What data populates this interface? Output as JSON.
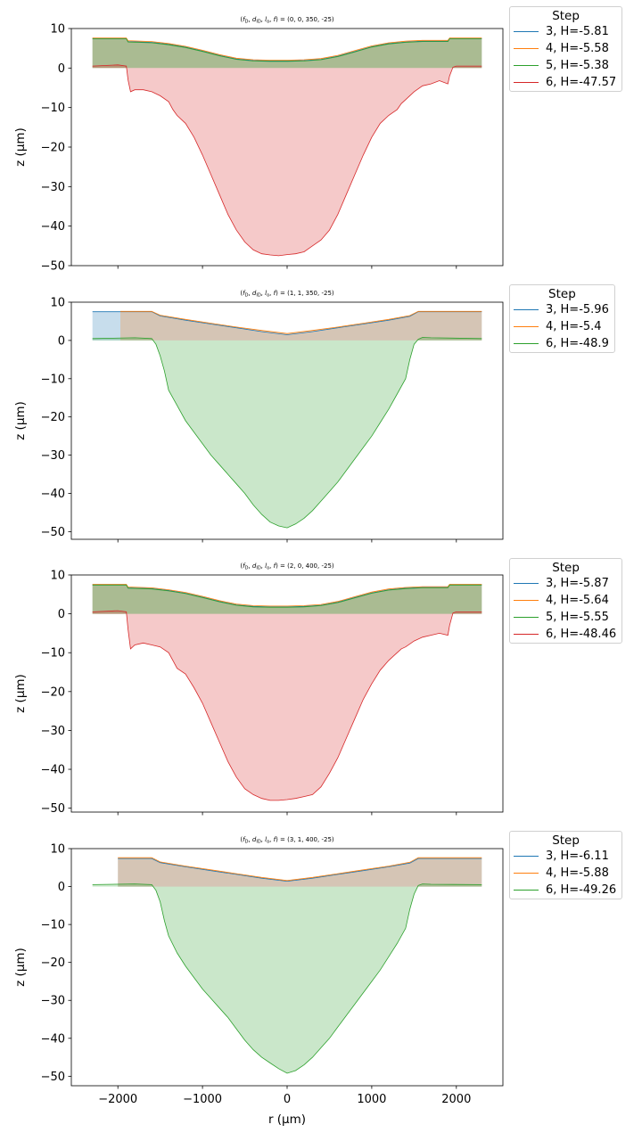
{
  "figure": {
    "width": 720,
    "height": 1280
  },
  "chart_data": [
    {
      "type": "area",
      "title": "(f_D, d_ID, l_o, f) = (0, 0, 350, -25)",
      "title_prefix": "(",
      "title_vars": [
        "f",
        "D",
        "d",
        "ID",
        "l",
        "o",
        "f"
      ],
      "title_suffix": ") = (0, 0, 350, -25)",
      "xlabel": "",
      "ylabel": "z (μm)",
      "xlim": [
        -2550,
        2550
      ],
      "ylim": [
        -50,
        10
      ],
      "xticks": [
        -2000,
        -1000,
        0,
        1000,
        2000
      ],
      "yticks": [
        10,
        0,
        -10,
        -20,
        -30,
        -40,
        -50
      ],
      "show_xticklabels": false,
      "grid": false,
      "legend": {
        "title": "Step",
        "placement": "outside-right",
        "entries": [
          "3, H=-5.81",
          "4, H=-5.58",
          "5, H=-5.38",
          "6, H=-47.57"
        ]
      },
      "series": [
        {
          "name": "3, H=-5.81",
          "color": "#1f77b4",
          "fill": true,
          "x": [
            -2300,
            -1900,
            -1880,
            -1600,
            -1400,
            -1200,
            -1000,
            -800,
            -600,
            -400,
            -200,
            0,
            200,
            400,
            600,
            800,
            1000,
            1200,
            1400,
            1600,
            1900,
            1920,
            2300
          ],
          "y": [
            7.5,
            7.5,
            6.7,
            6.5,
            6,
            5.3,
            4.3,
            3.2,
            2.3,
            1.9,
            1.8,
            1.8,
            1.9,
            2.2,
            3,
            4.2,
            5.4,
            6.2,
            6.6,
            6.8,
            6.8,
            7.5,
            7.5
          ]
        },
        {
          "name": "4, H=-5.58",
          "color": "#ff7f0e",
          "fill": true,
          "x": [
            -2300,
            -1900,
            -1880,
            -1600,
            -1400,
            -1200,
            -1000,
            -800,
            -600,
            -400,
            -200,
            0,
            200,
            400,
            600,
            800,
            1000,
            1200,
            1400,
            1600,
            1900,
            1920,
            2300
          ],
          "y": [
            7.6,
            7.6,
            6.9,
            6.7,
            6.2,
            5.5,
            4.5,
            3.4,
            2.5,
            2.1,
            2,
            2,
            2.1,
            2.4,
            3.2,
            4.4,
            5.6,
            6.4,
            6.8,
            7,
            7,
            7.6,
            7.6
          ]
        },
        {
          "name": "5, H=-5.38",
          "color": "#2ca02c",
          "fill": true,
          "x": [
            -2300,
            -1900,
            -1880,
            -1600,
            -1400,
            -1200,
            -1000,
            -800,
            -600,
            -400,
            -200,
            0,
            200,
            400,
            600,
            800,
            1000,
            1200,
            1400,
            1600,
            1900,
            1920,
            2300
          ],
          "y": [
            7.4,
            7.4,
            6.6,
            6.4,
            5.9,
            5.2,
            4.2,
            3.1,
            2.2,
            1.8,
            1.7,
            1.7,
            1.8,
            2.1,
            2.9,
            4.1,
            5.3,
            6.1,
            6.5,
            6.7,
            6.7,
            7.4,
            7.4
          ]
        },
        {
          "name": "6, H=-47.57",
          "color": "#d62728",
          "fill": true,
          "x": [
            -2300,
            -2000,
            -1900,
            -1880,
            -1850,
            -1800,
            -1700,
            -1600,
            -1500,
            -1400,
            -1350,
            -1300,
            -1200,
            -1100,
            -1000,
            -900,
            -800,
            -700,
            -600,
            -500,
            -400,
            -300,
            -200,
            -100,
            0,
            100,
            200,
            300,
            400,
            500,
            600,
            700,
            800,
            900,
            1000,
            1100,
            1200,
            1300,
            1350,
            1400,
            1500,
            1600,
            1700,
            1800,
            1900,
            1920,
            1960,
            2000,
            2300
          ],
          "y": [
            0.5,
            0.8,
            0.5,
            -3,
            -6,
            -5.5,
            -5.5,
            -6,
            -7,
            -8.5,
            -10.5,
            -12,
            -14,
            -17.5,
            -22,
            -27,
            -32,
            -37,
            -41,
            -44,
            -46,
            -47,
            -47.3,
            -47.5,
            -47.2,
            -47,
            -46.5,
            -45,
            -43.5,
            -41,
            -37,
            -32,
            -27,
            -22,
            -17.5,
            -14,
            -12,
            -10.5,
            -9,
            -8,
            -6,
            -4.5,
            -4,
            -3.2,
            -4,
            -2,
            0.2,
            0.5,
            0.5
          ]
        }
      ]
    },
    {
      "type": "area",
      "title": "(f_D, d_ID, l_o, f) = (1, 1, 350, -25)",
      "title_prefix": "(",
      "title_vars": [
        "f",
        "D",
        "d",
        "ID",
        "l",
        "o",
        "f"
      ],
      "title_suffix": ") = (1, 1, 350, -25)",
      "xlabel": "",
      "ylabel": "z (μm)",
      "xlim": [
        -2550,
        2550
      ],
      "ylim": [
        -52,
        10
      ],
      "xticks": [
        -2000,
        -1000,
        0,
        1000,
        2000
      ],
      "yticks": [
        10,
        0,
        -10,
        -20,
        -30,
        -40,
        -50
      ],
      "show_xticklabels": false,
      "grid": false,
      "legend": {
        "title": "Step",
        "placement": "outside-right",
        "entries": [
          "3, H=-5.96",
          "4, H=-5.4",
          "6, H=-48.9"
        ]
      },
      "series": [
        {
          "name": "3, H=-5.96",
          "color": "#1f77b4",
          "fill": true,
          "x": [
            -2300,
            -1600,
            -1500,
            -1200,
            -900,
            -600,
            -300,
            0,
            300,
            600,
            900,
            1200,
            1450,
            1550,
            2300
          ],
          "y": [
            7.5,
            7.5,
            6.4,
            5.3,
            4.3,
            3.3,
            2.3,
            1.5,
            2.3,
            3.3,
            4.3,
            5.3,
            6.3,
            7.5,
            7.5
          ]
        },
        {
          "name": "4, H=-5.4",
          "color": "#ff7f0e",
          "fill": true,
          "x": [
            -1970,
            -1600,
            -1500,
            -1200,
            -900,
            -600,
            -300,
            0,
            300,
            600,
            900,
            1200,
            1450,
            1550,
            2300
          ],
          "y": [
            7.6,
            7.6,
            6.6,
            5.5,
            4.5,
            3.5,
            2.6,
            1.8,
            2.6,
            3.5,
            4.5,
            5.5,
            6.5,
            7.6,
            7.6
          ]
        },
        {
          "name": "6, H=-48.9",
          "color": "#2ca02c",
          "fill": true,
          "x": [
            -2300,
            -1800,
            -1600,
            -1550,
            -1500,
            -1450,
            -1400,
            -1300,
            -1200,
            -1100,
            -1000,
            -900,
            -800,
            -700,
            -600,
            -500,
            -400,
            -300,
            -200,
            -100,
            0,
            100,
            200,
            300,
            400,
            500,
            600,
            700,
            800,
            900,
            1000,
            1100,
            1200,
            1300,
            1400,
            1450,
            1500,
            1550,
            1600,
            1700,
            2300
          ],
          "y": [
            0.5,
            0.7,
            0.5,
            -1,
            -4,
            -8,
            -13,
            -17,
            -21,
            -24,
            -27,
            -30,
            -32.5,
            -35,
            -37.5,
            -40,
            -43,
            -45.5,
            -47.5,
            -48.5,
            -49,
            -48,
            -46.5,
            -44.5,
            -42,
            -39.5,
            -37,
            -34,
            -31,
            -28,
            -25,
            -21.5,
            -18,
            -14,
            -10,
            -5,
            -1,
            0.3,
            0.8,
            0.7,
            0.5
          ]
        }
      ]
    },
    {
      "type": "area",
      "title": "(f_D, d_ID, l_o, f) = (2, 0, 400, -25)",
      "title_prefix": "(",
      "title_vars": [
        "f",
        "D",
        "d",
        "ID",
        "l",
        "o",
        "f"
      ],
      "title_suffix": ") = (2, 0, 400, -25)",
      "xlabel": "",
      "ylabel": "z (μm)",
      "xlim": [
        -2550,
        2550
      ],
      "ylim": [
        -51,
        10
      ],
      "xticks": [
        -2000,
        -1000,
        0,
        1000,
        2000
      ],
      "yticks": [
        10,
        0,
        -10,
        -20,
        -30,
        -40,
        -50
      ],
      "show_xticklabels": false,
      "grid": false,
      "legend": {
        "title": "Step",
        "placement": "outside-right",
        "entries": [
          "3, H=-5.87",
          "4, H=-5.64",
          "5, H=-5.55",
          "6, H=-48.46"
        ]
      },
      "series": [
        {
          "name": "3, H=-5.87",
          "color": "#1f77b4",
          "fill": true,
          "x": [
            -2300,
            -1900,
            -1880,
            -1600,
            -1400,
            -1200,
            -1000,
            -800,
            -600,
            -400,
            -200,
            0,
            200,
            400,
            600,
            800,
            1000,
            1200,
            1400,
            1600,
            1900,
            1920,
            2300
          ],
          "y": [
            7.5,
            7.5,
            6.7,
            6.5,
            6,
            5.3,
            4.3,
            3.2,
            2.3,
            1.9,
            1.8,
            1.8,
            1.9,
            2.2,
            3,
            4.2,
            5.4,
            6.2,
            6.6,
            6.8,
            6.8,
            7.5,
            7.5
          ]
        },
        {
          "name": "4, H=-5.64",
          "color": "#ff7f0e",
          "fill": true,
          "x": [
            -2300,
            -1900,
            -1880,
            -1600,
            -1400,
            -1200,
            -1000,
            -800,
            -600,
            -400,
            -200,
            0,
            200,
            400,
            600,
            800,
            1000,
            1200,
            1400,
            1600,
            1900,
            1920,
            2300
          ],
          "y": [
            7.6,
            7.6,
            6.9,
            6.7,
            6.2,
            5.5,
            4.5,
            3.4,
            2.5,
            2.1,
            2,
            2,
            2.1,
            2.4,
            3.2,
            4.4,
            5.6,
            6.4,
            6.8,
            7,
            7,
            7.6,
            7.6
          ]
        },
        {
          "name": "5, H=-5.55",
          "color": "#2ca02c",
          "fill": true,
          "x": [
            -2300,
            -1900,
            -1880,
            -1600,
            -1400,
            -1200,
            -1000,
            -800,
            -600,
            -400,
            -200,
            0,
            200,
            400,
            600,
            800,
            1000,
            1200,
            1400,
            1600,
            1900,
            1920,
            2300
          ],
          "y": [
            7.4,
            7.4,
            6.6,
            6.4,
            5.9,
            5.2,
            4.2,
            3.1,
            2.2,
            1.8,
            1.7,
            1.7,
            1.8,
            2.1,
            2.9,
            4.1,
            5.3,
            6.1,
            6.5,
            6.7,
            6.7,
            7.4,
            7.4
          ]
        },
        {
          "name": "6, H=-48.46",
          "color": "#d62728",
          "fill": true,
          "x": [
            -2300,
            -2000,
            -1900,
            -1880,
            -1850,
            -1800,
            -1700,
            -1600,
            -1500,
            -1400,
            -1350,
            -1300,
            -1200,
            -1100,
            -1000,
            -900,
            -800,
            -700,
            -600,
            -500,
            -400,
            -300,
            -200,
            -100,
            0,
            100,
            200,
            300,
            400,
            500,
            600,
            700,
            800,
            900,
            1000,
            1100,
            1200,
            1300,
            1350,
            1400,
            1500,
            1600,
            1700,
            1800,
            1900,
            1920,
            1960,
            2000,
            2300
          ],
          "y": [
            0.5,
            0.8,
            0.5,
            -4,
            -9,
            -8,
            -7.5,
            -8,
            -8.5,
            -10,
            -12,
            -14,
            -15.5,
            -19,
            -23,
            -28,
            -33,
            -38,
            -42,
            -45,
            -46.5,
            -47.5,
            -48,
            -48,
            -47.8,
            -47.5,
            -47,
            -46.5,
            -44.5,
            -41,
            -37,
            -32,
            -27,
            -22,
            -18,
            -14.5,
            -12,
            -10,
            -9,
            -8.5,
            -7,
            -6,
            -5.5,
            -5,
            -5.5,
            -3,
            0.2,
            0.5,
            0.5
          ]
        }
      ]
    },
    {
      "type": "area",
      "title": "(f_D, d_ID, l_o, f) = (3, 1, 400, -25)",
      "title_prefix": "(",
      "title_vars": [
        "f",
        "D",
        "d",
        "ID",
        "l",
        "o",
        "f"
      ],
      "title_suffix": ") = (3, 1, 400, -25)",
      "xlabel": "r (μm)",
      "ylabel": "z (μm)",
      "xlim": [
        -2550,
        2550
      ],
      "ylim": [
        -52.5,
        10
      ],
      "xticks": [
        -2000,
        -1000,
        0,
        1000,
        2000
      ],
      "xticklabels": [
        "−2000",
        "−1000",
        "0",
        "1000",
        "2000"
      ],
      "yticks": [
        10,
        0,
        -10,
        -20,
        -30,
        -40,
        -50
      ],
      "show_xticklabels": true,
      "grid": false,
      "legend": {
        "title": "Step",
        "placement": "outside-right",
        "entries": [
          "3, H=-6.11",
          "4, H=-5.88",
          "6, H=-49.26"
        ]
      },
      "series": [
        {
          "name": "3, H=-6.11",
          "color": "#1f77b4",
          "fill": true,
          "x": [
            -2000,
            -1600,
            -1500,
            -1200,
            -900,
            -600,
            -300,
            0,
            300,
            600,
            900,
            1200,
            1450,
            1550,
            2300
          ],
          "y": [
            7.4,
            7.4,
            6.3,
            5.2,
            4.2,
            3.2,
            2.2,
            1.4,
            2.2,
            3.2,
            4.2,
            5.2,
            6.2,
            7.4,
            7.4
          ]
        },
        {
          "name": "4, H=-5.88",
          "color": "#ff7f0e",
          "fill": true,
          "x": [
            -2000,
            -1600,
            -1500,
            -1200,
            -900,
            -600,
            -300,
            0,
            300,
            600,
            900,
            1200,
            1450,
            1550,
            2300
          ],
          "y": [
            7.6,
            7.6,
            6.5,
            5.4,
            4.4,
            3.4,
            2.4,
            1.6,
            2.4,
            3.4,
            4.4,
            5.4,
            6.4,
            7.6,
            7.6
          ]
        },
        {
          "name": "6, H=-49.26",
          "color": "#2ca02c",
          "fill": true,
          "x": [
            -2300,
            -1800,
            -1600,
            -1550,
            -1500,
            -1450,
            -1400,
            -1300,
            -1200,
            -1100,
            -1000,
            -900,
            -800,
            -700,
            -600,
            -500,
            -400,
            -300,
            -200,
            -100,
            0,
            100,
            200,
            300,
            400,
            500,
            600,
            700,
            800,
            900,
            1000,
            1100,
            1200,
            1300,
            1400,
            1450,
            1500,
            1550,
            1600,
            1700,
            2300
          ],
          "y": [
            0.5,
            0.7,
            0.5,
            -1,
            -4,
            -9,
            -13,
            -17.5,
            -21,
            -24,
            -27,
            -29.5,
            -32,
            -34.5,
            -37.5,
            -40.5,
            -43,
            -45,
            -46.5,
            -48,
            -49.2,
            -48.5,
            -47,
            -45,
            -42.5,
            -40,
            -37,
            -34,
            -31,
            -28,
            -25,
            -22,
            -18.5,
            -15,
            -11,
            -6,
            -2,
            0.3,
            0.7,
            0.6,
            0.5
          ]
        }
      ]
    }
  ]
}
